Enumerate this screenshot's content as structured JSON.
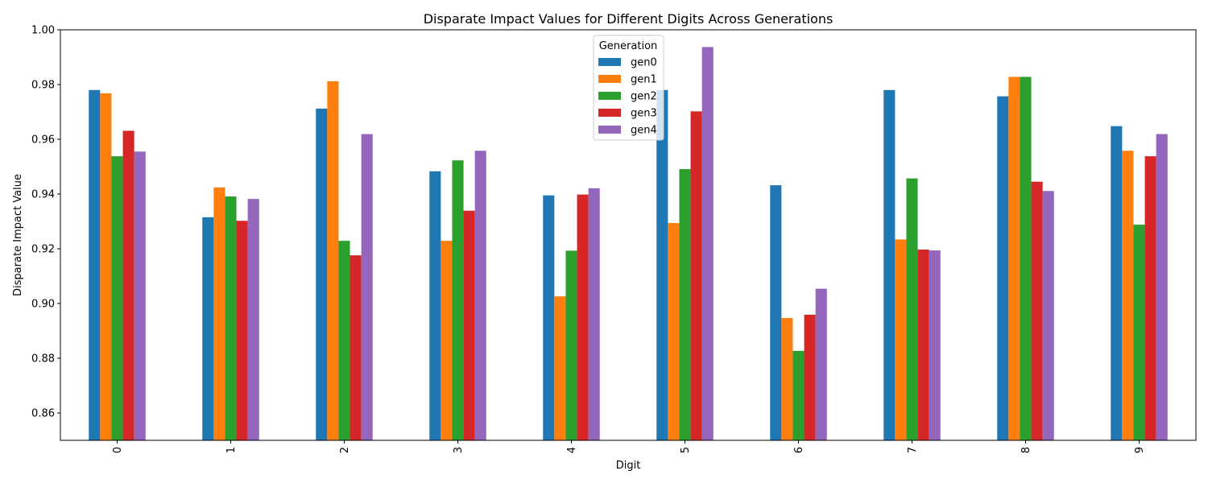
{
  "chart_data": {
    "type": "bar",
    "title": "Disparate Impact Values for Different Digits Across Generations",
    "xlabel": "Digit",
    "ylabel": "Disparate Impact Value",
    "ylim": [
      0.85,
      1.0
    ],
    "yticks": [
      "0.86",
      "0.88",
      "0.90",
      "0.92",
      "0.94",
      "0.96",
      "0.98",
      "1.00"
    ],
    "categories": [
      "0",
      "1",
      "2",
      "3",
      "4",
      "5",
      "6",
      "7",
      "8",
      "9"
    ],
    "legend": {
      "title": "Generation",
      "placement": "top-center"
    },
    "grid": false,
    "series": [
      {
        "name": "gen0",
        "color": "#1f77b4",
        "values": [
          0.978,
          0.9315,
          0.9712,
          0.9483,
          0.9395,
          0.978,
          0.9432,
          0.978,
          0.9757,
          0.9648
        ]
      },
      {
        "name": "gen1",
        "color": "#ff7f0e",
        "values": [
          0.9768,
          0.9424,
          0.9812,
          0.9229,
          0.9026,
          0.9294,
          0.8947,
          0.9234,
          0.9828,
          0.9558
        ]
      },
      {
        "name": "gen2",
        "color": "#2ca02c",
        "values": [
          0.9538,
          0.9391,
          0.9229,
          0.9523,
          0.9193,
          0.9491,
          0.8827,
          0.9457,
          0.9828,
          0.9288
        ]
      },
      {
        "name": "gen3",
        "color": "#d62728",
        "values": [
          0.9631,
          0.9302,
          0.9176,
          0.9339,
          0.9398,
          0.9702,
          0.8959,
          0.9197,
          0.9445,
          0.9538
        ]
      },
      {
        "name": "gen4",
        "color": "#9467bd",
        "values": [
          0.9555,
          0.9382,
          0.9619,
          0.9558,
          0.9421,
          0.9937,
          0.9054,
          0.9194,
          0.9411,
          0.9619
        ]
      }
    ]
  }
}
